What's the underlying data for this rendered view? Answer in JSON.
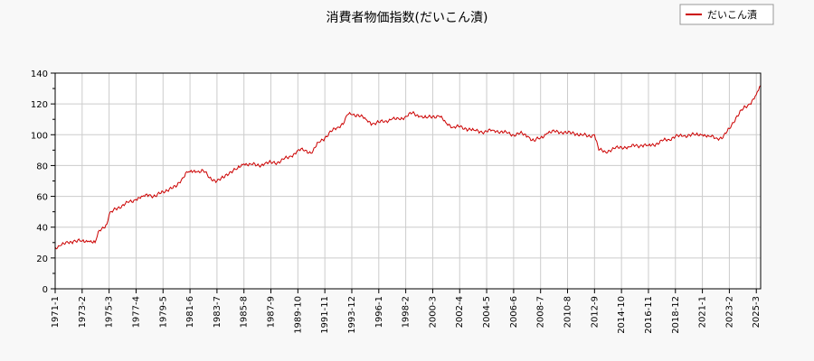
{
  "chart_data": {
    "type": "line",
    "title": "消費者物価指数(だいこん漬)",
    "xlabel": "",
    "ylabel": "",
    "xlim": [
      "1971-1",
      "2025-7"
    ],
    "ylim": [
      0,
      140
    ],
    "yticks": [
      0,
      20,
      40,
      60,
      80,
      100,
      120,
      140
    ],
    "xticks": [
      "1971-1",
      "1973-2",
      "1975-3",
      "1977-4",
      "1979-5",
      "1981-6",
      "1983-7",
      "1985-8",
      "1987-9",
      "1989-10",
      "1991-11",
      "1993-12",
      "1996-1",
      "1998-2",
      "2000-3",
      "2002-4",
      "2004-5",
      "2006-6",
      "2008-7",
      "2010-8",
      "2012-9",
      "2014-10",
      "2016-11",
      "2018-12",
      "2021-1",
      "2023-2",
      "2025-3"
    ],
    "grid": true,
    "legend_position": "top-right",
    "series": [
      {
        "name": "だいこん漬",
        "color": "#cc0000",
        "points": [
          [
            "1971-1",
            27
          ],
          [
            "1971-6",
            28
          ],
          [
            "1972-1",
            30
          ],
          [
            "1972-6",
            31
          ],
          [
            "1973-2",
            31
          ],
          [
            "1973-8",
            31
          ],
          [
            "1974-2",
            30
          ],
          [
            "1974-6",
            38
          ],
          [
            "1975-1",
            42
          ],
          [
            "1975-3",
            48
          ],
          [
            "1975-9",
            52
          ],
          [
            "1976-3",
            54
          ],
          [
            "1976-9",
            56
          ],
          [
            "1977-4",
            58
          ],
          [
            "1977-10",
            60
          ],
          [
            "1978-4",
            61
          ],
          [
            "1978-10",
            60
          ],
          [
            "1979-5",
            63
          ],
          [
            "1979-11",
            65
          ],
          [
            "1980-5",
            66
          ],
          [
            "1980-11",
            72
          ],
          [
            "1981-3",
            76
          ],
          [
            "1981-6",
            76
          ],
          [
            "1981-12",
            76
          ],
          [
            "1982-6",
            77
          ],
          [
            "1982-12",
            72
          ],
          [
            "1983-7",
            70
          ],
          [
            "1984-1",
            72
          ],
          [
            "1984-7",
            76
          ],
          [
            "1985-2",
            78
          ],
          [
            "1985-8",
            81
          ],
          [
            "1986-2",
            81
          ],
          [
            "1986-8",
            80
          ],
          [
            "1987-3",
            81
          ],
          [
            "1987-9",
            82
          ],
          [
            "1988-3",
            82
          ],
          [
            "1988-9",
            84
          ],
          [
            "1989-4",
            86
          ],
          [
            "1989-10",
            90
          ],
          [
            "1990-5",
            90
          ],
          [
            "1990-11",
            88
          ],
          [
            "1991-5",
            95
          ],
          [
            "1991-11",
            98
          ],
          [
            "1992-5",
            102
          ],
          [
            "1992-11",
            105
          ],
          [
            "1993-5",
            108
          ],
          [
            "1993-8",
            113
          ],
          [
            "1993-12",
            113
          ],
          [
            "1994-6",
            113
          ],
          [
            "1995-1",
            110
          ],
          [
            "1995-7",
            107
          ],
          [
            "1996-1",
            108
          ],
          [
            "1996-7",
            109
          ],
          [
            "1997-1",
            110
          ],
          [
            "1997-8",
            110
          ],
          [
            "1998-2",
            112
          ],
          [
            "1998-8",
            114
          ],
          [
            "1999-3",
            112
          ],
          [
            "1999-9",
            111
          ],
          [
            "2000-3",
            112
          ],
          [
            "2000-9",
            112
          ],
          [
            "2001-3",
            108
          ],
          [
            "2001-10",
            105
          ],
          [
            "2002-4",
            105
          ],
          [
            "2002-10",
            104
          ],
          [
            "2003-5",
            103
          ],
          [
            "2003-11",
            102
          ],
          [
            "2004-5",
            102
          ],
          [
            "2004-11",
            103
          ],
          [
            "2005-6",
            102
          ],
          [
            "2005-12",
            101
          ],
          [
            "2006-6",
            100
          ],
          [
            "2006-12",
            101
          ],
          [
            "2007-7",
            99
          ],
          [
            "2008-1",
            96
          ],
          [
            "2008-7",
            98
          ],
          [
            "2009-1",
            101
          ],
          [
            "2009-8",
            102
          ],
          [
            "2010-2",
            102
          ],
          [
            "2010-8",
            101
          ],
          [
            "2011-2",
            101
          ],
          [
            "2011-9",
            100
          ],
          [
            "2012-3",
            99
          ],
          [
            "2012-9",
            100
          ],
          [
            "2013-1",
            90
          ],
          [
            "2013-7",
            89
          ],
          [
            "2014-4",
            91
          ],
          [
            "2014-10",
            92
          ],
          [
            "2015-5",
            92
          ],
          [
            "2015-11",
            93
          ],
          [
            "2016-5",
            93
          ],
          [
            "2016-11",
            93
          ],
          [
            "2017-6",
            94
          ],
          [
            "2017-12",
            96
          ],
          [
            "2018-6",
            97
          ],
          [
            "2018-12",
            99
          ],
          [
            "2019-7",
            99
          ],
          [
            "2020-1",
            100
          ],
          [
            "2020-7",
            100
          ],
          [
            "2021-1",
            100
          ],
          [
            "2021-7",
            99
          ],
          [
            "2022-2",
            98
          ],
          [
            "2022-8",
            98
          ],
          [
            "2023-2",
            104
          ],
          [
            "2023-8",
            111
          ],
          [
            "2024-3",
            117
          ],
          [
            "2024-9",
            120
          ],
          [
            "2025-3",
            126
          ],
          [
            "2025-7",
            132
          ]
        ]
      }
    ]
  }
}
